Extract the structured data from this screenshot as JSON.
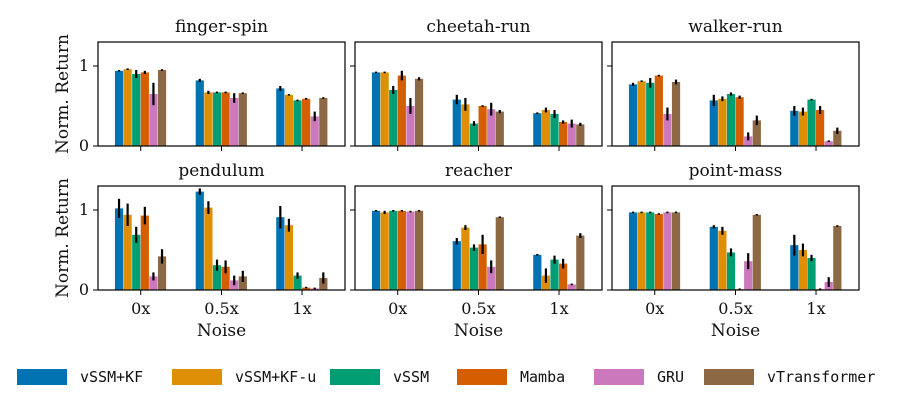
{
  "chart_data": {
    "type": "bar",
    "categories": [
      "0x",
      "0.5x",
      "1x"
    ],
    "xlabel": "Noise",
    "ylabel": "Norm. Return",
    "ylim": [
      0,
      1.3
    ],
    "yticks": [
      0,
      1
    ],
    "series_names": [
      "vSSM+KF",
      "vSSM+KF-u",
      "vSSM",
      "Mamba",
      "GRU",
      "vTransformer"
    ],
    "colors": [
      "#0173b2",
      "#de8f05",
      "#029e73",
      "#d55e00",
      "#cc78bc",
      "#8c6845"
    ],
    "legend_position": "bottom",
    "panels": [
      {
        "title": "finger-spin",
        "values": [
          [
            0.94,
            0.96,
            0.9,
            0.92,
            0.65,
            0.95
          ],
          [
            0.82,
            0.67,
            0.67,
            0.67,
            0.6,
            0.66
          ],
          [
            0.72,
            0.64,
            0.57,
            0.59,
            0.37,
            0.6
          ]
        ],
        "errors": [
          [
            0.01,
            0.01,
            0.05,
            0.02,
            0.14,
            0.01
          ],
          [
            0.02,
            0.02,
            0.01,
            0.01,
            0.06,
            0.01
          ],
          [
            0.03,
            0.01,
            0.01,
            0.01,
            0.06,
            0.01
          ]
        ]
      },
      {
        "title": "cheetah-run",
        "values": [
          [
            0.92,
            0.92,
            0.7,
            0.88,
            0.5,
            0.84
          ],
          [
            0.58,
            0.52,
            0.28,
            0.5,
            0.46,
            0.43
          ],
          [
            0.41,
            0.45,
            0.4,
            0.3,
            0.28,
            0.27
          ]
        ],
        "errors": [
          [
            0.01,
            0.01,
            0.05,
            0.06,
            0.1,
            0.02
          ],
          [
            0.06,
            0.08,
            0.03,
            0.01,
            0.08,
            0.02
          ],
          [
            0.01,
            0.03,
            0.05,
            0.02,
            0.05,
            0.02
          ]
        ]
      },
      {
        "title": "walker-run",
        "values": [
          [
            0.77,
            0.81,
            0.79,
            0.88,
            0.4,
            0.8
          ],
          [
            0.57,
            0.59,
            0.65,
            0.61,
            0.12,
            0.32
          ],
          [
            0.44,
            0.43,
            0.58,
            0.45,
            0.06,
            0.19
          ]
        ],
        "errors": [
          [
            0.02,
            0.01,
            0.06,
            0.01,
            0.08,
            0.03
          ],
          [
            0.07,
            0.03,
            0.02,
            0.02,
            0.05,
            0.06
          ],
          [
            0.06,
            0.05,
            0.01,
            0.05,
            0.01,
            0.04
          ]
        ]
      },
      {
        "title": "pendulum",
        "values": [
          [
            1.02,
            0.94,
            0.69,
            0.93,
            0.17,
            0.42
          ],
          [
            1.23,
            1.03,
            0.31,
            0.29,
            0.12,
            0.17
          ],
          [
            0.91,
            0.81,
            0.18,
            0.03,
            0.02,
            0.15
          ]
        ],
        "errors": [
          [
            0.12,
            0.14,
            0.1,
            0.11,
            0.05,
            0.09
          ],
          [
            0.04,
            0.08,
            0.07,
            0.08,
            0.06,
            0.07
          ],
          [
            0.14,
            0.08,
            0.04,
            0.01,
            0.01,
            0.07
          ]
        ]
      },
      {
        "title": "reacher",
        "values": [
          [
            0.99,
            0.97,
            0.99,
            0.99,
            0.98,
            0.99
          ],
          [
            0.61,
            0.78,
            0.53,
            0.57,
            0.29,
            0.91
          ],
          [
            0.44,
            0.18,
            0.38,
            0.33,
            0.07,
            0.68
          ]
        ],
        "errors": [
          [
            0.01,
            0.02,
            0.01,
            0.01,
            0.01,
            0.01
          ],
          [
            0.04,
            0.03,
            0.04,
            0.12,
            0.08,
            0.01
          ],
          [
            0.01,
            0.09,
            0.05,
            0.06,
            0.01,
            0.03
          ]
        ]
      },
      {
        "title": "point-mass",
        "values": [
          [
            0.97,
            0.97,
            0.97,
            0.95,
            0.97,
            0.97
          ],
          [
            0.79,
            0.74,
            0.47,
            0.01,
            0.36,
            0.94
          ],
          [
            0.56,
            0.5,
            0.4,
            0.01,
            0.1,
            0.8
          ]
        ],
        "errors": [
          [
            0.01,
            0.01,
            0.01,
            0.01,
            0.01,
            0.01
          ],
          [
            0.02,
            0.05,
            0.05,
            0.01,
            0.1,
            0.01
          ],
          [
            0.13,
            0.08,
            0.04,
            0.01,
            0.06,
            0.01
          ]
        ]
      }
    ]
  }
}
